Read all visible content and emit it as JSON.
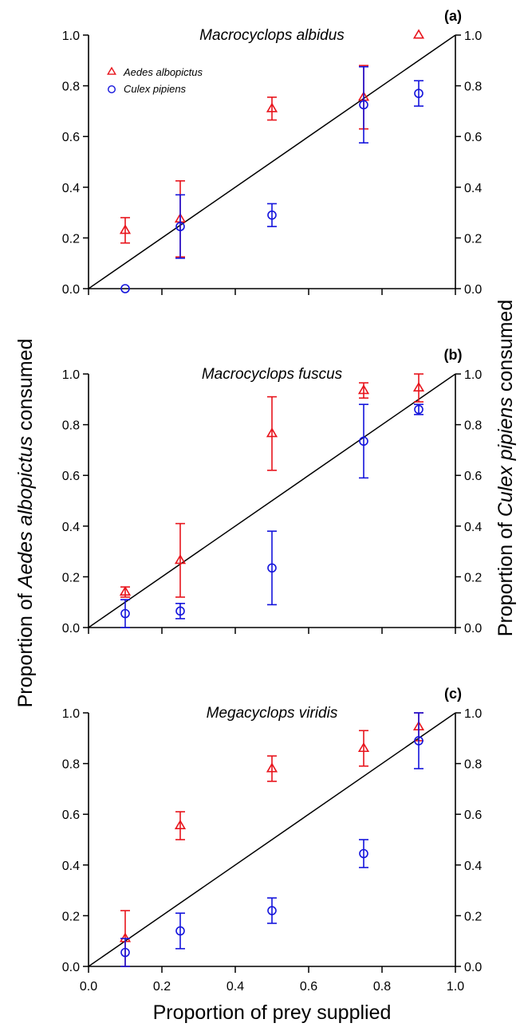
{
  "figure": {
    "xlabel": "Proportion of prey supplied",
    "ylabel_left_prefix": "Proportion of ",
    "ylabel_left_species": "Aedes albopictus",
    "ylabel_left_suffix": " consumed",
    "ylabel_right_prefix": "Proportion of ",
    "ylabel_right_species": "Culex pipiens",
    "ylabel_right_suffix": " consumed",
    "colors": {
      "aedes": "#e8141c",
      "culex": "#1414dc",
      "axis": "#000000"
    }
  },
  "chart_data": [
    {
      "type": "scatter",
      "panel_label": "(a)",
      "title": "Macrocyclops albidus",
      "xlim": [
        0,
        1
      ],
      "ylim": [
        0,
        1
      ],
      "xticks": [
        "0.0",
        "0.2",
        "0.4",
        "0.6",
        "0.8",
        "1.0"
      ],
      "yticks": [
        "0.0",
        "0.2",
        "0.4",
        "0.6",
        "0.8",
        "1.0"
      ],
      "reference_line": [
        [
          0,
          0
        ],
        [
          1,
          1
        ]
      ],
      "legend": {
        "position": "top-left",
        "entries": [
          "Aedes albopictus",
          "Culex pipiens"
        ]
      },
      "series": [
        {
          "name": "Aedes albopictus",
          "marker": "triangle",
          "color": "#e8141c",
          "x": [
            0.1,
            0.25,
            0.5,
            0.75,
            0.9
          ],
          "y": [
            0.23,
            0.275,
            0.71,
            0.755,
            1.0
          ],
          "err": [
            0.05,
            0.15,
            0.045,
            0.125,
            null
          ]
        },
        {
          "name": "Culex pipiens",
          "marker": "circle",
          "color": "#1414dc",
          "x": [
            0.1,
            0.25,
            0.5,
            0.75,
            0.9
          ],
          "y": [
            0.0,
            0.245,
            0.29,
            0.725,
            0.77
          ],
          "err": [
            null,
            0.125,
            0.045,
            0.15,
            0.05
          ]
        }
      ]
    },
    {
      "type": "scatter",
      "panel_label": "(b)",
      "title": "Macrocyclops fuscus",
      "xlim": [
        0,
        1
      ],
      "ylim": [
        0,
        1
      ],
      "xticks": [
        "0.0",
        "0.2",
        "0.4",
        "0.6",
        "0.8",
        "1.0"
      ],
      "yticks": [
        "0.0",
        "0.2",
        "0.4",
        "0.6",
        "0.8",
        "1.0"
      ],
      "reference_line": [
        [
          0,
          0
        ],
        [
          1,
          1
        ]
      ],
      "series": [
        {
          "name": "Aedes albopictus",
          "marker": "triangle",
          "color": "#e8141c",
          "x": [
            0.1,
            0.25,
            0.5,
            0.75,
            0.9
          ],
          "y": [
            0.14,
            0.265,
            0.765,
            0.935,
            0.945
          ],
          "err": [
            0.02,
            0.145,
            0.145,
            0.03,
            0.055
          ]
        },
        {
          "name": "Culex pipiens",
          "marker": "circle",
          "color": "#1414dc",
          "x": [
            0.1,
            0.25,
            0.5,
            0.75,
            0.9
          ],
          "y": [
            0.055,
            0.065,
            0.235,
            0.735,
            0.86
          ],
          "err": [
            0.055,
            0.03,
            0.145,
            0.145,
            0.02
          ]
        }
      ]
    },
    {
      "type": "scatter",
      "panel_label": "(c)",
      "title": "Megacyclops viridis",
      "xlim": [
        0,
        1
      ],
      "ylim": [
        0,
        1
      ],
      "xticks": [
        "0.0",
        "0.2",
        "0.4",
        "0.6",
        "0.8",
        "1.0"
      ],
      "yticks": [
        "0.0",
        "0.2",
        "0.4",
        "0.6",
        "0.8",
        "1.0"
      ],
      "reference_line": [
        [
          0,
          0
        ],
        [
          1,
          1
        ]
      ],
      "series": [
        {
          "name": "Aedes albopictus",
          "marker": "triangle",
          "color": "#e8141c",
          "x": [
            0.1,
            0.25,
            0.5,
            0.75,
            0.9
          ],
          "y": [
            0.11,
            0.555,
            0.78,
            0.86,
            0.945
          ],
          "err": [
            0.11,
            0.055,
            0.05,
            0.07,
            0.055
          ]
        },
        {
          "name": "Culex pipiens",
          "marker": "circle",
          "color": "#1414dc",
          "x": [
            0.1,
            0.25,
            0.5,
            0.75,
            0.9
          ],
          "y": [
            0.055,
            0.14,
            0.22,
            0.445,
            0.89
          ],
          "err": [
            0.055,
            0.07,
            0.05,
            0.055,
            0.11
          ]
        }
      ]
    }
  ]
}
